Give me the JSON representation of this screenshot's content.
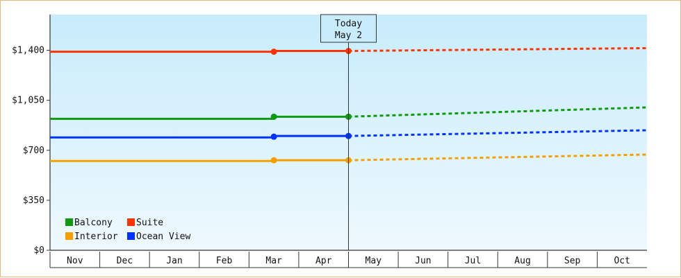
{
  "chart_data": {
    "type": "line",
    "categories": [
      "Nov",
      "Dec",
      "Jan",
      "Feb",
      "Mar",
      "Apr",
      "May",
      "Jun",
      "Jul",
      "Aug",
      "Sep",
      "Oct"
    ],
    "y_ticks": [
      "$0",
      "$350",
      "$700",
      "$1,050",
      "$1,400"
    ],
    "y_tick_values": [
      0,
      350,
      700,
      1050,
      1400
    ],
    "ylim": [
      0,
      1650
    ],
    "grid": false,
    "legend_position": "bottom-left",
    "today_marker": {
      "line1": "Today",
      "line2": "May 2",
      "month_position": 6.0
    },
    "series": [
      {
        "name": "Balcony",
        "color": "#119911",
        "actual": [
          [
            0.0,
            920
          ],
          [
            4.5,
            920
          ],
          [
            4.5,
            935
          ],
          [
            6.0,
            935
          ]
        ],
        "markers": [
          [
            4.5,
            935
          ],
          [
            6.0,
            935
          ]
        ],
        "forecast": [
          [
            6.0,
            935
          ],
          [
            12.0,
            1000
          ]
        ]
      },
      {
        "name": "Suite",
        "color": "#ff3300",
        "actual": [
          [
            0.0,
            1390
          ],
          [
            4.5,
            1390
          ],
          [
            4.5,
            1395
          ],
          [
            6.0,
            1395
          ]
        ],
        "markers": [
          [
            4.5,
            1390
          ],
          [
            6.0,
            1395
          ]
        ],
        "forecast": [
          [
            6.0,
            1395
          ],
          [
            12.0,
            1415
          ]
        ]
      },
      {
        "name": "Interior",
        "color": "#f5a000",
        "actual": [
          [
            0.0,
            625
          ],
          [
            4.5,
            625
          ],
          [
            4.5,
            630
          ],
          [
            6.0,
            630
          ]
        ],
        "markers": [
          [
            4.5,
            630
          ],
          [
            6.0,
            630
          ]
        ],
        "forecast": [
          [
            6.0,
            630
          ],
          [
            12.0,
            670
          ]
        ]
      },
      {
        "name": "Ocean View",
        "color": "#0033ff",
        "actual": [
          [
            0.0,
            790
          ],
          [
            4.5,
            790
          ],
          [
            4.5,
            800
          ],
          [
            6.0,
            800
          ]
        ],
        "markers": [
          [
            4.5,
            795
          ],
          [
            6.0,
            800
          ]
        ],
        "forecast": [
          [
            6.0,
            800
          ],
          [
            12.0,
            840
          ]
        ]
      }
    ],
    "legend_order": [
      "Balcony",
      "Suite",
      "Interior",
      "Ocean View"
    ]
  },
  "colors": {
    "plot_top": "#c8ecfb",
    "plot_bottom": "#eef9fe",
    "frame_border": "#e6b97a"
  }
}
